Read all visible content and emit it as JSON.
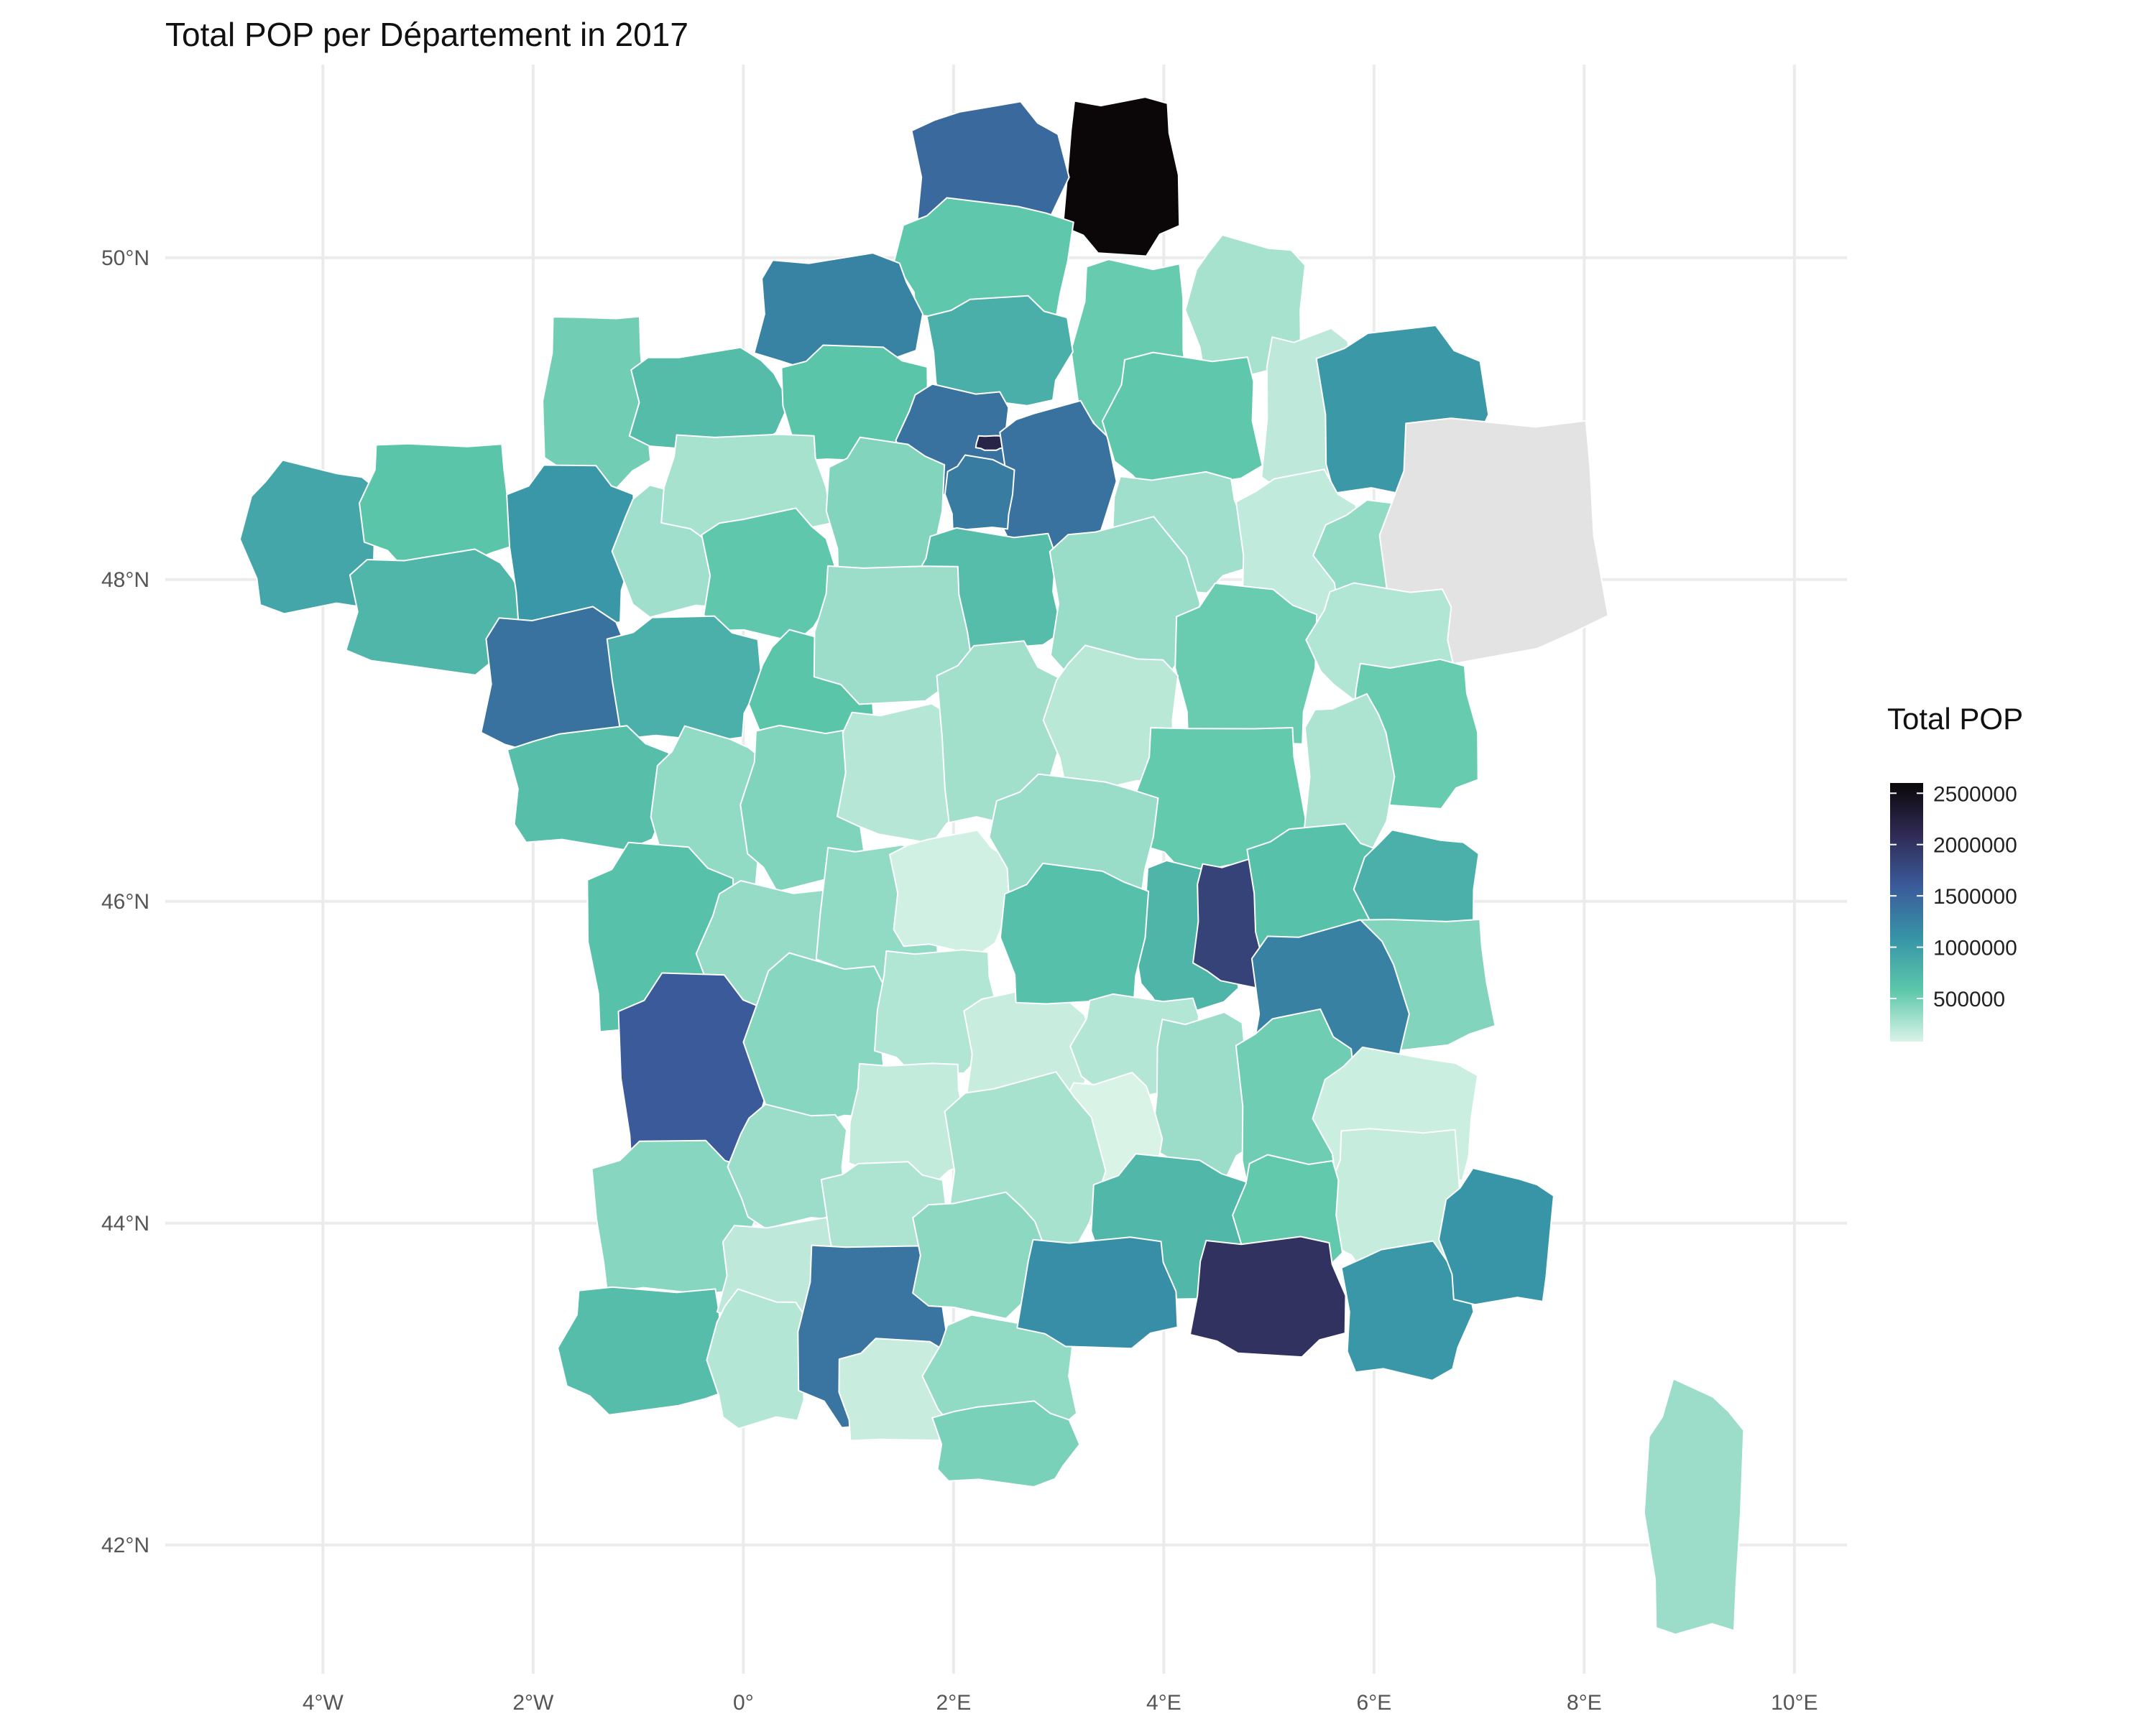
{
  "title": "Total  POP  per Département in 2017",
  "colors": {
    "background": "#ffffff",
    "grid": "#ebebeb",
    "missing": "#e3e3e3",
    "border": "#ffffff",
    "scale": [
      "#d9f3e7",
      "#5cc7aa",
      "#3794a7",
      "#3b5b9a",
      "#2f2b55",
      "#0b0709"
    ]
  },
  "chart_data": {
    "type": "choropleth",
    "region": "France (metropolitan)",
    "unit": "Département",
    "year": 2017,
    "variable": "Total POP",
    "x_axis": {
      "label": "",
      "range_lon": [
        -5.5,
        10.5
      ],
      "ticks": [
        "4°W",
        "2°W",
        "0°",
        "2°E",
        "4°E",
        "6°E",
        "8°E",
        "10°E"
      ],
      "tick_values": [
        -4,
        -2,
        0,
        2,
        4,
        6,
        8,
        10
      ]
    },
    "y_axis": {
      "label": "",
      "range_lat": [
        41.2,
        51.2
      ],
      "ticks": [
        "42°N",
        "44°N",
        "46°N",
        "48°N",
        "50°N"
      ],
      "tick_values": [
        42,
        44,
        46,
        48,
        50
      ]
    },
    "legend": {
      "title": "Total POP",
      "placement": "right",
      "min": 80000,
      "max": 2600000,
      "breaks": [
        2500000,
        2000000,
        1500000,
        1000000,
        500000
      ],
      "labels": [
        "2500000",
        "2000000",
        "1500000",
        "1000000",
        "500000"
      ]
    },
    "regions": [
      {
        "name": "Nord",
        "value": 2600000,
        "lon": [
          3.0,
          4.2
        ],
        "lat": [
          49.98,
          51.05
        ]
      },
      {
        "name": "Pas-de-Calais",
        "value": 1470000,
        "lon": [
          1.55,
          3.1
        ],
        "lat": [
          50.02,
          50.98
        ]
      },
      {
        "name": "Somme",
        "value": 570000,
        "lon": [
          1.4,
          3.2
        ],
        "lat": [
          49.58,
          50.38
        ]
      },
      {
        "name": "Aisne",
        "value": 540000,
        "lon": [
          3.1,
          4.3
        ],
        "lat": [
          48.8,
          50.05
        ]
      },
      {
        "name": "Seine-Maritime",
        "value": 1250000,
        "lon": [
          0.05,
          1.75
        ],
        "lat": [
          49.25,
          50.05
        ]
      },
      {
        "name": "Oise",
        "value": 820000,
        "lon": [
          1.7,
          3.15
        ],
        "lat": [
          49.05,
          49.78
        ]
      },
      {
        "name": "Ardennes",
        "value": 280000,
        "lon": [
          4.2,
          5.4
        ],
        "lat": [
          49.2,
          50.15
        ]
      },
      {
        "name": "Manche",
        "value": 500000,
        "lon": [
          -1.95,
          -0.85
        ],
        "lat": [
          48.5,
          49.72
        ]
      },
      {
        "name": "Calvados",
        "value": 690000,
        "lon": [
          -1.15,
          0.45
        ],
        "lat": [
          48.75,
          49.45
        ]
      },
      {
        "name": "Eure",
        "value": 600000,
        "lon": [
          0.3,
          1.8
        ],
        "lat": [
          48.68,
          49.48
        ]
      },
      {
        "name": "Val-d'Oise / Yvelines",
        "value": 1400000,
        "lon": [
          1.45,
          2.6
        ],
        "lat": [
          48.5,
          49.23
        ]
      },
      {
        "name": "Paris",
        "value": 2190000,
        "lon": [
          2.2,
          2.5
        ],
        "lat": [
          48.8,
          48.9
        ]
      },
      {
        "name": "Seine-et-Marne",
        "value": 1400000,
        "lon": [
          2.4,
          3.55
        ],
        "lat": [
          48.1,
          49.12
        ]
      },
      {
        "name": "Essonne",
        "value": 1300000,
        "lon": [
          1.9,
          2.6
        ],
        "lat": [
          48.28,
          48.78
        ]
      },
      {
        "name": "Marne",
        "value": 570000,
        "lon": [
          3.4,
          5.0
        ],
        "lat": [
          48.52,
          49.45
        ]
      },
      {
        "name": "Meuse",
        "value": 190000,
        "lon": [
          4.9,
          5.9
        ],
        "lat": [
          48.4,
          49.6
        ]
      },
      {
        "name": "Moselle / Meurthe-et-Moselle",
        "value": 1040000,
        "lon": [
          5.4,
          7.1
        ],
        "lat": [
          48.45,
          49.6
        ]
      },
      {
        "name": "Finistère",
        "value": 910000,
        "lon": [
          -4.8,
          -3.4
        ],
        "lat": [
          47.75,
          48.75
        ]
      },
      {
        "name": "Côtes-d'Armor",
        "value": 600000,
        "lon": [
          -3.7,
          -2.1
        ],
        "lat": [
          48.05,
          48.9
        ]
      },
      {
        "name": "Morbihan",
        "value": 750000,
        "lon": [
          -3.85,
          -2.0
        ],
        "lat": [
          47.4,
          48.2
        ]
      },
      {
        "name": "Ille-et-Vilaine",
        "value": 1060000,
        "lon": [
          -2.3,
          -1.0
        ],
        "lat": [
          47.65,
          48.75
        ]
      },
      {
        "name": "Mayenne",
        "value": 310000,
        "lon": [
          -1.25,
          -0.05
        ],
        "lat": [
          47.75,
          48.6
        ]
      },
      {
        "name": "Orne",
        "value": 280000,
        "lon": [
          -0.85,
          0.9
        ],
        "lat": [
          48.2,
          48.95
        ]
      },
      {
        "name": "Sarthe",
        "value": 570000,
        "lon": [
          -0.45,
          0.9
        ],
        "lat": [
          47.6,
          48.45
        ]
      },
      {
        "name": "Eure-et-Loir",
        "value": 430000,
        "lon": [
          0.75,
          1.95
        ],
        "lat": [
          47.95,
          48.9
        ]
      },
      {
        "name": "Loiret",
        "value": 680000,
        "lon": [
          1.55,
          3.1
        ],
        "lat": [
          47.5,
          48.35
        ]
      },
      {
        "name": "Aube",
        "value": 310000,
        "lon": [
          3.4,
          4.85
        ],
        "lat": [
          47.9,
          48.7
        ]
      },
      {
        "name": "Haute-Marne",
        "value": 180000,
        "lon": [
          4.65,
          5.9
        ],
        "lat": [
          47.6,
          48.7
        ]
      },
      {
        "name": "Vosges",
        "value": 370000,
        "lon": [
          5.4,
          7.2
        ],
        "lat": [
          47.8,
          48.5
        ]
      },
      {
        "name": "Alsace (not shown)",
        "value": null,
        "lon": [
          6.0,
          8.3
        ],
        "lat": [
          47.45,
          49.1
        ]
      },
      {
        "name": "Loire-Atlantique",
        "value": 1390000,
        "lon": [
          -2.55,
          -0.95
        ],
        "lat": [
          46.85,
          47.85
        ]
      },
      {
        "name": "Maine-et-Loire",
        "value": 810000,
        "lon": [
          -1.35,
          0.2
        ],
        "lat": [
          46.95,
          47.8
        ]
      },
      {
        "name": "Indre-et-Loire",
        "value": 600000,
        "lon": [
          0.05,
          1.35
        ],
        "lat": [
          46.75,
          47.7
        ]
      },
      {
        "name": "Loir-et-Cher",
        "value": 330000,
        "lon": [
          0.6,
          2.25
        ],
        "lat": [
          47.2,
          48.15
        ]
      },
      {
        "name": "Yonne",
        "value": 340000,
        "lon": [
          2.85,
          4.35
        ],
        "lat": [
          47.3,
          48.4
        ]
      },
      {
        "name": "Côte-d'Or",
        "value": 530000,
        "lon": [
          4.05,
          5.5
        ],
        "lat": [
          46.9,
          48.0
        ]
      },
      {
        "name": "Haute-Saône",
        "value": 240000,
        "lon": [
          5.35,
          6.85
        ],
        "lat": [
          47.25,
          48.0
        ]
      },
      {
        "name": "Doubs",
        "value": 540000,
        "lon": [
          5.7,
          7.05
        ],
        "lat": [
          46.55,
          47.55
        ]
      },
      {
        "name": "Vendée",
        "value": 670000,
        "lon": [
          -2.3,
          -0.6
        ],
        "lat": [
          46.3,
          47.1
        ]
      },
      {
        "name": "Deux-Sèvres",
        "value": 370000,
        "lon": [
          -0.9,
          0.25
        ],
        "lat": [
          45.95,
          47.1
        ]
      },
      {
        "name": "Vienne",
        "value": 440000,
        "lon": [
          -0.05,
          1.2
        ],
        "lat": [
          46.05,
          47.15
        ]
      },
      {
        "name": "Indre",
        "value": 220000,
        "lon": [
          0.85,
          2.2
        ],
        "lat": [
          46.35,
          47.25
        ]
      },
      {
        "name": "Cher",
        "value": 300000,
        "lon": [
          1.8,
          3.05
        ],
        "lat": [
          46.4,
          47.65
        ]
      },
      {
        "name": "Nièvre",
        "value": 210000,
        "lon": [
          2.85,
          4.2
        ],
        "lat": [
          46.65,
          47.6
        ]
      },
      {
        "name": "Saône-et-Loire",
        "value": 550000,
        "lon": [
          3.65,
          5.45
        ],
        "lat": [
          46.15,
          47.15
        ]
      },
      {
        "name": "Jura",
        "value": 260000,
        "lon": [
          5.3,
          6.2
        ],
        "lat": [
          46.25,
          47.3
        ]
      },
      {
        "name": "Charente-Maritime",
        "value": 640000,
        "lon": [
          -1.55,
          -0.05
        ],
        "lat": [
          45.1,
          46.4
        ]
      },
      {
        "name": "Charente",
        "value": 350000,
        "lon": [
          -0.45,
          0.95
        ],
        "lat": [
          45.2,
          46.15
        ]
      },
      {
        "name": "Haute-Vienne",
        "value": 370000,
        "lon": [
          0.65,
          1.9
        ],
        "lat": [
          45.45,
          46.4
        ]
      },
      {
        "name": "Creuse",
        "value": 120000,
        "lon": [
          1.35,
          2.6
        ],
        "lat": [
          45.65,
          46.45
        ]
      },
      {
        "name": "Allier",
        "value": 340000,
        "lon": [
          2.3,
          4.0
        ],
        "lat": [
          46.0,
          46.8
        ]
      },
      {
        "name": "Loire",
        "value": 760000,
        "lon": [
          3.7,
          4.75
        ],
        "lat": [
          45.25,
          46.3
        ]
      },
      {
        "name": "Rhône",
        "value": 1840000,
        "lon": [
          4.25,
          5.15
        ],
        "lat": [
          45.45,
          46.3
        ]
      },
      {
        "name": "Ain",
        "value": 640000,
        "lon": [
          4.75,
          6.15
        ],
        "lat": [
          45.6,
          46.5
        ]
      },
      {
        "name": "Haute-Savoie",
        "value": 810000,
        "lon": [
          5.8,
          7.05
        ],
        "lat": [
          45.7,
          46.45
        ]
      },
      {
        "name": "Savoie",
        "value": 430000,
        "lon": [
          5.65,
          7.2
        ],
        "lat": [
          45.05,
          45.95
        ]
      },
      {
        "name": "Isère",
        "value": 1260000,
        "lon": [
          4.75,
          6.35
        ],
        "lat": [
          44.7,
          45.9
        ]
      },
      {
        "name": "Gironde",
        "value": 1600000,
        "lon": [
          -1.25,
          0.3
        ],
        "lat": [
          44.2,
          45.6
        ]
      },
      {
        "name": "Dordogne",
        "value": 410000,
        "lon": [
          0.0,
          1.45
        ],
        "lat": [
          44.55,
          45.7
        ]
      },
      {
        "name": "Corrèze",
        "value": 240000,
        "lon": [
          1.2,
          2.5
        ],
        "lat": [
          44.9,
          45.75
        ]
      },
      {
        "name": "Cantal",
        "value": 150000,
        "lon": [
          2.05,
          3.35
        ],
        "lat": [
          44.6,
          45.5
        ]
      },
      {
        "name": "Puy-de-Dôme",
        "value": 650000,
        "lon": [
          2.4,
          3.9
        ],
        "lat": [
          45.3,
          46.25
        ]
      },
      {
        "name": "Haute-Loire",
        "value": 230000,
        "lon": [
          3.1,
          4.45
        ],
        "lat": [
          44.75,
          45.45
        ]
      },
      {
        "name": "Ardèche",
        "value": 330000,
        "lon": [
          3.85,
          4.9
        ],
        "lat": [
          44.25,
          45.35
        ]
      },
      {
        "name": "Drôme",
        "value": 510000,
        "lon": [
          4.65,
          5.85
        ],
        "lat": [
          44.1,
          45.35
        ]
      },
      {
        "name": "Hautes-Alpes",
        "value": 140000,
        "lon": [
          5.4,
          7.05
        ],
        "lat": [
          44.2,
          45.1
        ]
      },
      {
        "name": "Alpes-de-Haute-Provence",
        "value": 160000,
        "lon": [
          5.5,
          6.95
        ],
        "lat": [
          43.65,
          44.65
        ]
      },
      {
        "name": "Lozère",
        "value": 76000,
        "lon": [
          3.0,
          4.0
        ],
        "lat": [
          44.1,
          44.95
        ]
      },
      {
        "name": "Landes",
        "value": 410000,
        "lon": [
          -1.5,
          0.15
        ],
        "lat": [
          43.5,
          44.55
        ]
      },
      {
        "name": "Lot-et-Garonne",
        "value": 330000,
        "lon": [
          -0.15,
          1.05
        ],
        "lat": [
          43.95,
          44.75
        ]
      },
      {
        "name": "Lot",
        "value": 170000,
        "lon": [
          0.95,
          2.2
        ],
        "lat": [
          44.2,
          45.05
        ]
      },
      {
        "name": "Aveyron",
        "value": 280000,
        "lon": [
          1.85,
          3.45
        ],
        "lat": [
          43.7,
          44.95
        ]
      },
      {
        "name": "Gard",
        "value": 740000,
        "lon": [
          3.25,
          4.85
        ],
        "lat": [
          43.45,
          44.45
        ]
      },
      {
        "name": "Vaucluse",
        "value": 560000,
        "lon": [
          4.65,
          5.75
        ],
        "lat": [
          43.65,
          44.45
        ]
      },
      {
        "name": "Bouches-du-Rhône",
        "value": 2020000,
        "lon": [
          4.2,
          5.8
        ],
        "lat": [
          43.15,
          43.95
        ]
      },
      {
        "name": "Var",
        "value": 1060000,
        "lon": [
          5.65,
          6.95
        ],
        "lat": [
          43.0,
          43.9
        ]
      },
      {
        "name": "Alpes-Maritimes",
        "value": 1080000,
        "lon": [
          6.6,
          7.75
        ],
        "lat": [
          43.45,
          44.35
        ]
      },
      {
        "name": "Pyrénées-Atlantiques",
        "value": 680000,
        "lon": [
          -1.8,
          -0.05
        ],
        "lat": [
          42.8,
          43.65
        ]
      },
      {
        "name": "Gers",
        "value": 190000,
        "lon": [
          -0.3,
          1.25
        ],
        "lat": [
          43.3,
          44.05
        ]
      },
      {
        "name": "Tarn-et-Garonne",
        "value": 260000,
        "lon": [
          0.7,
          1.95
        ],
        "lat": [
          43.75,
          44.4
        ]
      },
      {
        "name": "Hautes-Pyrénées",
        "value": 230000,
        "lon": [
          -0.35,
          0.65
        ],
        "lat": [
          42.7,
          43.6
        ]
      },
      {
        "name": "Haute-Garonne",
        "value": 1360000,
        "lon": [
          0.45,
          2.05
        ],
        "lat": [
          42.7,
          43.95
        ]
      },
      {
        "name": "Tarn",
        "value": 390000,
        "lon": [
          1.55,
          2.9
        ],
        "lat": [
          43.4,
          44.2
        ]
      },
      {
        "name": "Ariège",
        "value": 150000,
        "lon": [
          0.85,
          2.2
        ],
        "lat": [
          42.6,
          43.3
        ]
      },
      {
        "name": "Aude",
        "value": 370000,
        "lon": [
          1.7,
          3.25
        ],
        "lat": [
          42.65,
          43.45
        ]
      },
      {
        "name": "Hérault",
        "value": 1140000,
        "lon": [
          2.55,
          4.2
        ],
        "lat": [
          43.2,
          43.95
        ]
      },
      {
        "name": "Pyrénées-Orientales",
        "value": 470000,
        "lon": [
          1.75,
          3.2
        ],
        "lat": [
          42.35,
          42.9
        ]
      },
      {
        "name": "Corse",
        "value": 330000,
        "lon": [
          8.55,
          9.55
        ],
        "lat": [
          41.35,
          43.05
        ]
      }
    ]
  }
}
